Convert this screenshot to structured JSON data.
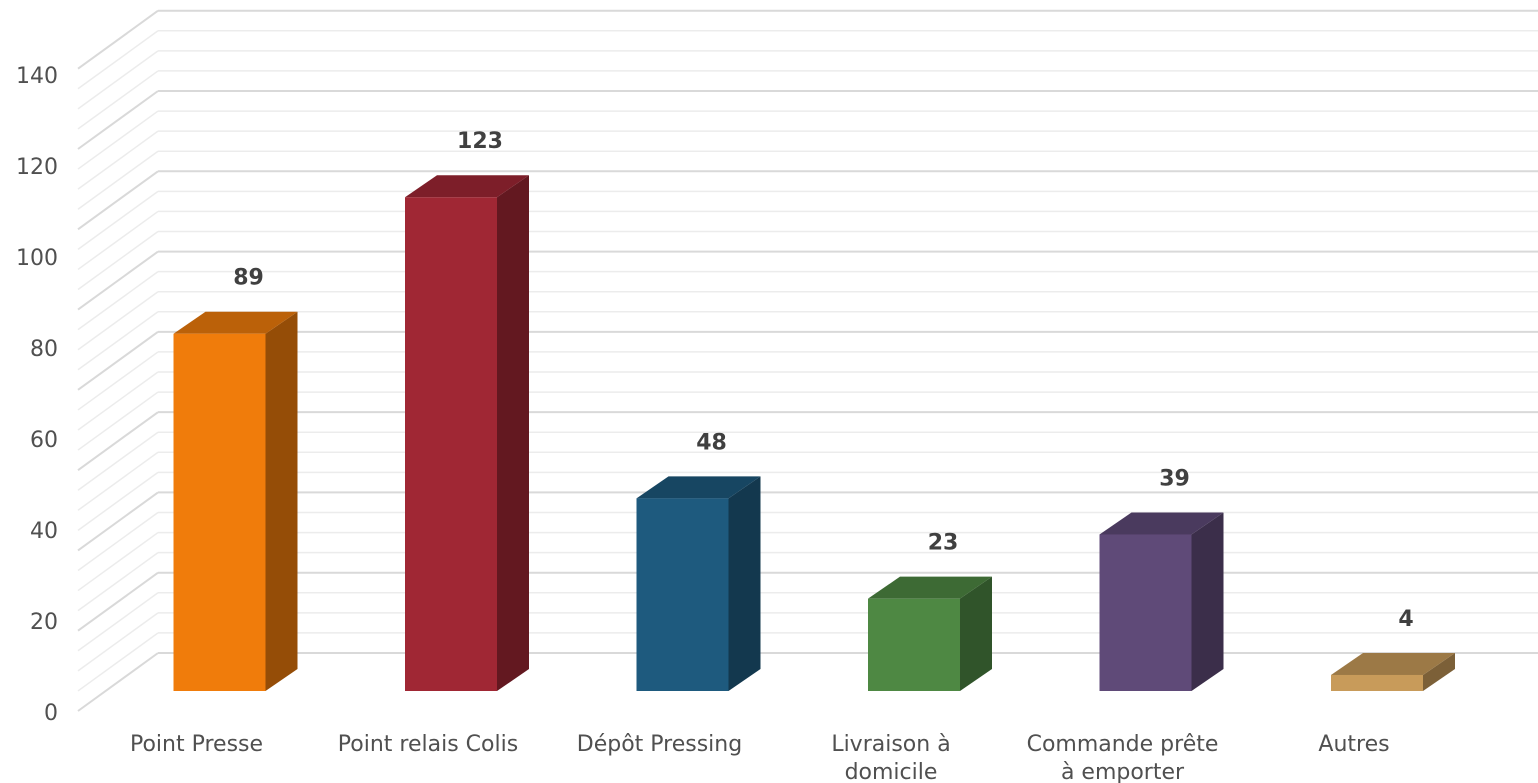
{
  "chart_data": {
    "type": "bar",
    "style": "3d-column",
    "title": "",
    "xlabel": "",
    "ylabel": "",
    "ylim": [
      0,
      140
    ],
    "ytick_step": 20,
    "grid": true,
    "legend": "none",
    "categories": [
      [
        "Point Presse"
      ],
      [
        "Point relais Colis"
      ],
      [
        "Dépôt Pressing"
      ],
      [
        "Livraison à",
        "domicile"
      ],
      [
        "Commande prête",
        "à emporter"
      ],
      [
        "Autres"
      ]
    ],
    "series": [
      {
        "values": [
          89,
          123,
          48,
          23,
          39,
          4
        ]
      }
    ],
    "colors": [
      "#F07C0B",
      "#A02734",
      "#1E5A7E",
      "#4E8843",
      "#5F4A78",
      "#C89B5A"
    ]
  }
}
